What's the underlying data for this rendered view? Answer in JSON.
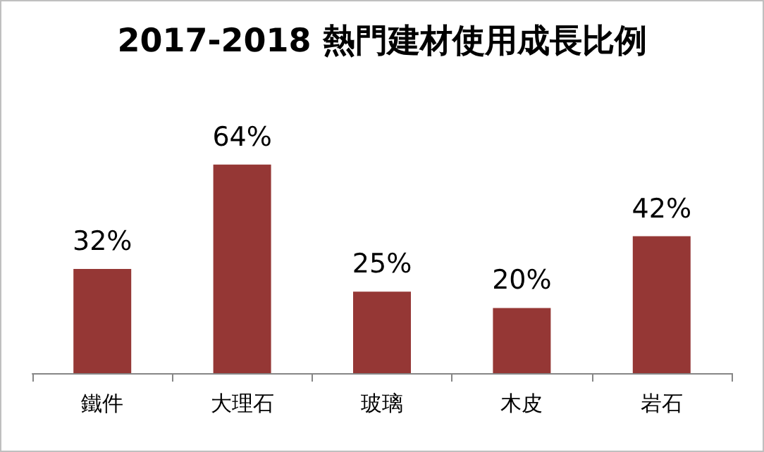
{
  "chart_data": {
    "type": "bar",
    "title": "2017-2018 熱門建材使用成長比例",
    "categories": [
      "鐵件",
      "大理石",
      "玻璃",
      "木皮",
      "岩石"
    ],
    "values": [
      32,
      64,
      25,
      20,
      42
    ],
    "value_labels": [
      "32%",
      "64%",
      "25%",
      "20%",
      "42%"
    ],
    "color": "#953735",
    "grid": false
  }
}
